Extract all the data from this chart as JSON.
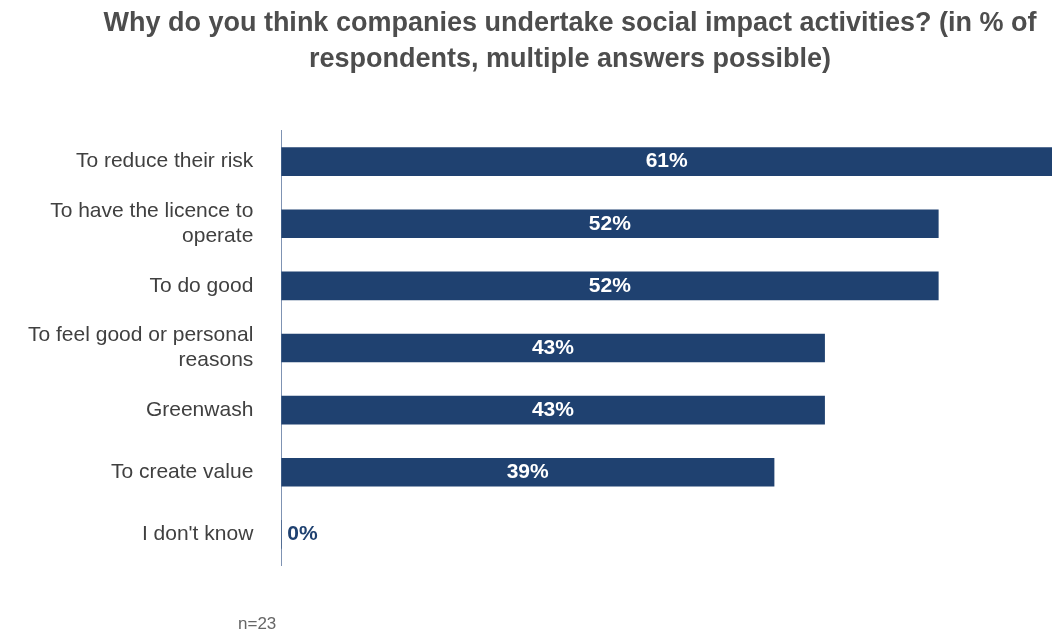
{
  "chart_data": {
    "type": "bar",
    "orientation": "horizontal",
    "title": "Why do you think companies undertake social impact activities? (in % of respondents, multiple answers possible)",
    "categories": [
      "To reduce their risk",
      "To have the licence to operate",
      "To do good",
      "To feel good or personal reasons",
      "Greenwash",
      "To create value",
      "I don't know"
    ],
    "values": [
      61,
      52,
      52,
      43,
      43,
      39,
      0
    ],
    "value_labels": [
      "61%",
      "52%",
      "52%",
      "43%",
      "43%",
      "39%",
      "0%"
    ],
    "color": "#1f4170",
    "grid": false,
    "legend": false,
    "annotations": [
      "n=23"
    ]
  }
}
